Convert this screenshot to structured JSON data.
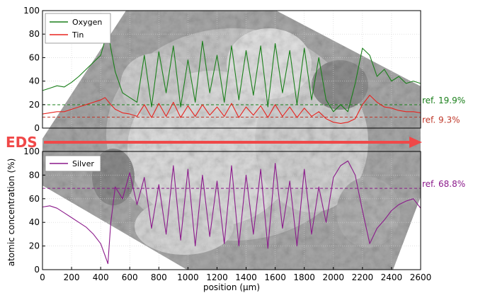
{
  "chart_data": [
    {
      "type": "line",
      "panel": "top",
      "xlabel": "position (μm)",
      "ylabel": "atomic concentration (%)",
      "xlim": [
        0,
        2600
      ],
      "ylim": [
        0,
        100
      ],
      "yticks": [
        0,
        20,
        40,
        60,
        80,
        100
      ],
      "grid": true,
      "legend_position": "top-left",
      "series": [
        {
          "name": "Oxygen",
          "color": "#1a7f1a",
          "x": [
            0,
            50,
            100,
            150,
            200,
            250,
            300,
            350,
            400,
            430,
            450,
            470,
            500,
            550,
            600,
            650,
            700,
            750,
            800,
            850,
            900,
            950,
            1000,
            1050,
            1100,
            1150,
            1200,
            1250,
            1300,
            1350,
            1400,
            1450,
            1500,
            1550,
            1600,
            1650,
            1700,
            1750,
            1800,
            1850,
            1900,
            1950,
            2000,
            2050,
            2100,
            2150,
            2200,
            2250,
            2300,
            2350,
            2400,
            2450,
            2500,
            2550,
            2600
          ],
          "y": [
            32,
            34,
            36,
            35,
            39,
            44,
            50,
            56,
            62,
            75,
            84,
            68,
            48,
            30,
            26,
            22,
            62,
            18,
            65,
            30,
            70,
            18,
            58,
            22,
            74,
            30,
            62,
            22,
            70,
            24,
            66,
            28,
            70,
            18,
            72,
            30,
            66,
            20,
            68,
            24,
            60,
            24,
            14,
            20,
            14,
            38,
            68,
            62,
            44,
            50,
            40,
            44,
            38,
            40,
            38
          ]
        },
        {
          "name": "Tin",
          "color": "#e8231f",
          "x": [
            0,
            50,
            100,
            150,
            200,
            250,
            300,
            350,
            400,
            430,
            450,
            470,
            500,
            550,
            600,
            650,
            700,
            750,
            800,
            850,
            900,
            950,
            1000,
            1050,
            1100,
            1150,
            1200,
            1250,
            1300,
            1350,
            1400,
            1450,
            1500,
            1550,
            1600,
            1650,
            1700,
            1750,
            1800,
            1850,
            1900,
            1950,
            2000,
            2050,
            2100,
            2150,
            2200,
            2250,
            2300,
            2350,
            2400,
            2450,
            2500,
            2550,
            2600
          ],
          "y": [
            12,
            13,
            14,
            14,
            16,
            18,
            20,
            22,
            24,
            26,
            23,
            20,
            16,
            13,
            12,
            10,
            20,
            9,
            21,
            10,
            22,
            9,
            19,
            10,
            20,
            11,
            18,
            10,
            21,
            9,
            18,
            11,
            19,
            9,
            20,
            10,
            18,
            9,
            17,
            10,
            14,
            8,
            5,
            4,
            5,
            8,
            20,
            28,
            22,
            18,
            17,
            15,
            14,
            14,
            13
          ]
        }
      ],
      "reference_lines": [
        {
          "value": 19.9,
          "label": "ref. 19.9%",
          "color": "#1a7f1a"
        },
        {
          "value": 9.3,
          "label": "ref. 9.3%",
          "color": "#c0392b"
        }
      ]
    },
    {
      "type": "line",
      "panel": "bottom",
      "xlabel": "position (μm)",
      "ylabel": "atomic concentration (%)",
      "xlim": [
        0,
        2600
      ],
      "ylim": [
        0,
        100
      ],
      "yticks": [
        0,
        20,
        40,
        60,
        80,
        100
      ],
      "xticks": [
        0,
        200,
        400,
        600,
        800,
        1000,
        1200,
        1400,
        1600,
        1800,
        2000,
        2200,
        2400,
        2600
      ],
      "grid": true,
      "legend_position": "top-left",
      "series": [
        {
          "name": "Silver",
          "color": "#8b1a8b",
          "x": [
            0,
            50,
            100,
            150,
            200,
            250,
            300,
            350,
            400,
            430,
            450,
            470,
            500,
            550,
            600,
            650,
            700,
            750,
            800,
            850,
            900,
            950,
            1000,
            1050,
            1100,
            1150,
            1200,
            1250,
            1300,
            1350,
            1400,
            1450,
            1500,
            1550,
            1600,
            1650,
            1700,
            1750,
            1800,
            1850,
            1900,
            1950,
            2000,
            2050,
            2100,
            2150,
            2200,
            2250,
            2300,
            2350,
            2400,
            2450,
            2500,
            2550,
            2600
          ],
          "y": [
            53,
            54,
            52,
            48,
            44,
            40,
            36,
            30,
            22,
            12,
            5,
            40,
            70,
            60,
            82,
            55,
            78,
            35,
            72,
            30,
            88,
            25,
            85,
            20,
            80,
            28,
            75,
            22,
            88,
            20,
            80,
            30,
            85,
            18,
            90,
            35,
            75,
            20,
            85,
            30,
            70,
            40,
            78,
            88,
            92,
            80,
            50,
            22,
            35,
            42,
            50,
            55,
            58,
            60,
            52
          ]
        }
      ],
      "reference_lines": [
        {
          "value": 68.8,
          "label": "ref. 68.8%",
          "color": "#8b1a8b"
        }
      ]
    }
  ],
  "eds_label": "EDS",
  "eds_color": "#f04848"
}
